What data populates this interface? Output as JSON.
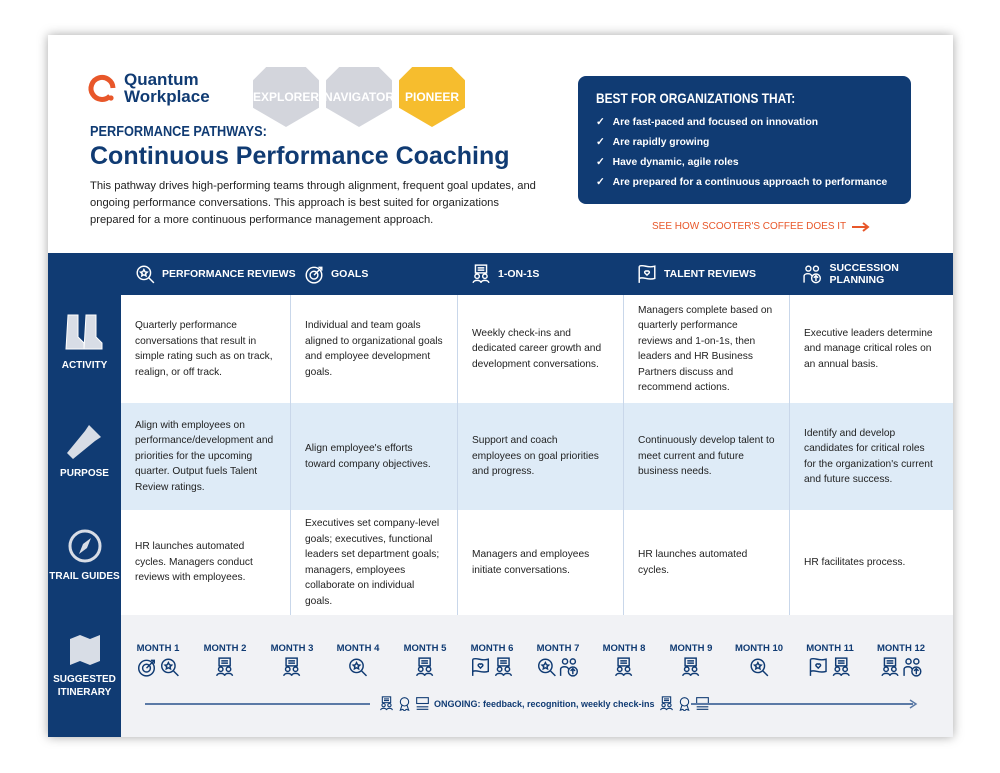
{
  "logo": {
    "line1": "Quantum",
    "line2": "Workplace"
  },
  "badges": [
    {
      "label": "EXPLORER",
      "active": false
    },
    {
      "label": "NAVIGATOR",
      "active": false
    },
    {
      "label": "PIONEER",
      "active": true
    }
  ],
  "colors": {
    "navy": "#103b73",
    "orange": "#e8572a",
    "gold": "#f6bd2e",
    "badge_inactive": "#d3d5dc",
    "light_blue": "#deebf7"
  },
  "header": {
    "kicker": "PERFORMANCE PATHWAYS:",
    "title": "Continuous Performance Coaching",
    "intro": "This pathway drives high-performing teams through alignment, frequent goal updates, and ongoing performance conversations. This approach is best suited for organizations prepared for a more continuous performance management approach."
  },
  "best_for": {
    "heading": "BEST FOR ORGANIZATIONS THAT:",
    "items": [
      "Are fast-paced and focused on innovation",
      "Are rapidly growing",
      "Have dynamic, agile roles",
      "Are prepared for a continuous approach to performance"
    ]
  },
  "case_link": "SEE HOW SCOOTER'S COFFEE DOES IT",
  "columns": [
    {
      "label": "PERFORMANCE REVIEWS",
      "icon": "review"
    },
    {
      "label": "GOALS",
      "icon": "goals"
    },
    {
      "label": "1-ON-1S",
      "icon": "oneonone"
    },
    {
      "label": "TALENT REVIEWS",
      "icon": "talent"
    },
    {
      "label": "SUCCESSION PLANNING",
      "icon": "succession"
    }
  ],
  "rows": [
    {
      "label": "ACTIVITY",
      "icon": "boots-icon",
      "cells": [
        "Quarterly performance conversations that result in simple rating such as on track, realign, or off track.",
        "Individual and team goals aligned to organizational goals and employee development goals.",
        "Weekly check-ins and dedicated career growth and development conversations.",
        "Managers complete based on quarterly performance reviews and 1-on-1s, then leaders and HR Business Partners discuss and recommend actions.",
        "Executive leaders determine and manage critical roles on an annual basis."
      ]
    },
    {
      "label": "PURPOSE",
      "icon": "flashlight-icon",
      "cells": [
        "Align with employees on performance/development and priorities for the upcoming quarter. Output fuels Talent Review ratings.",
        "Align employee's efforts toward company objectives.",
        "Support and coach employees on goal priorities and progress.",
        "Continuously develop talent to meet current and future business needs.",
        "Identify and develop candidates for critical roles for the organization's current and future success."
      ]
    },
    {
      "label": "TRAIL GUIDES",
      "icon": "compass-icon",
      "cells": [
        "HR launches automated cycles. Managers conduct reviews with employees.",
        "Executives set company-level goals; executives, functional leaders set department goals; managers, employees collaborate on individual goals.",
        "Managers and employees initiate conversations.",
        "HR launches automated cycles.",
        "HR facilitates process."
      ]
    }
  ],
  "itinerary": {
    "label": "SUGGESTED ITINERARY",
    "months": [
      {
        "label": "MONTH 1",
        "icons": [
          "goals",
          "review"
        ]
      },
      {
        "label": "MONTH 2",
        "icons": [
          "oneonone"
        ]
      },
      {
        "label": "MONTH 3",
        "icons": [
          "oneonone"
        ]
      },
      {
        "label": "MONTH 4",
        "icons": [
          "review"
        ]
      },
      {
        "label": "MONTH 5",
        "icons": [
          "oneonone"
        ]
      },
      {
        "label": "MONTH 6",
        "icons": [
          "talent",
          "oneonone"
        ]
      },
      {
        "label": "MONTH 7",
        "icons": [
          "review",
          "succession"
        ]
      },
      {
        "label": "MONTH 8",
        "icons": [
          "oneonone"
        ]
      },
      {
        "label": "MONTH 9",
        "icons": [
          "oneonone"
        ]
      },
      {
        "label": "MONTH 10",
        "icons": [
          "review"
        ]
      },
      {
        "label": "MONTH 11",
        "icons": [
          "talent",
          "oneonone"
        ]
      },
      {
        "label": "MONTH 12",
        "icons": [
          "oneonone",
          "succession"
        ]
      }
    ],
    "ongoing": "ONGOING: feedback, recognition, weekly check-ins"
  }
}
